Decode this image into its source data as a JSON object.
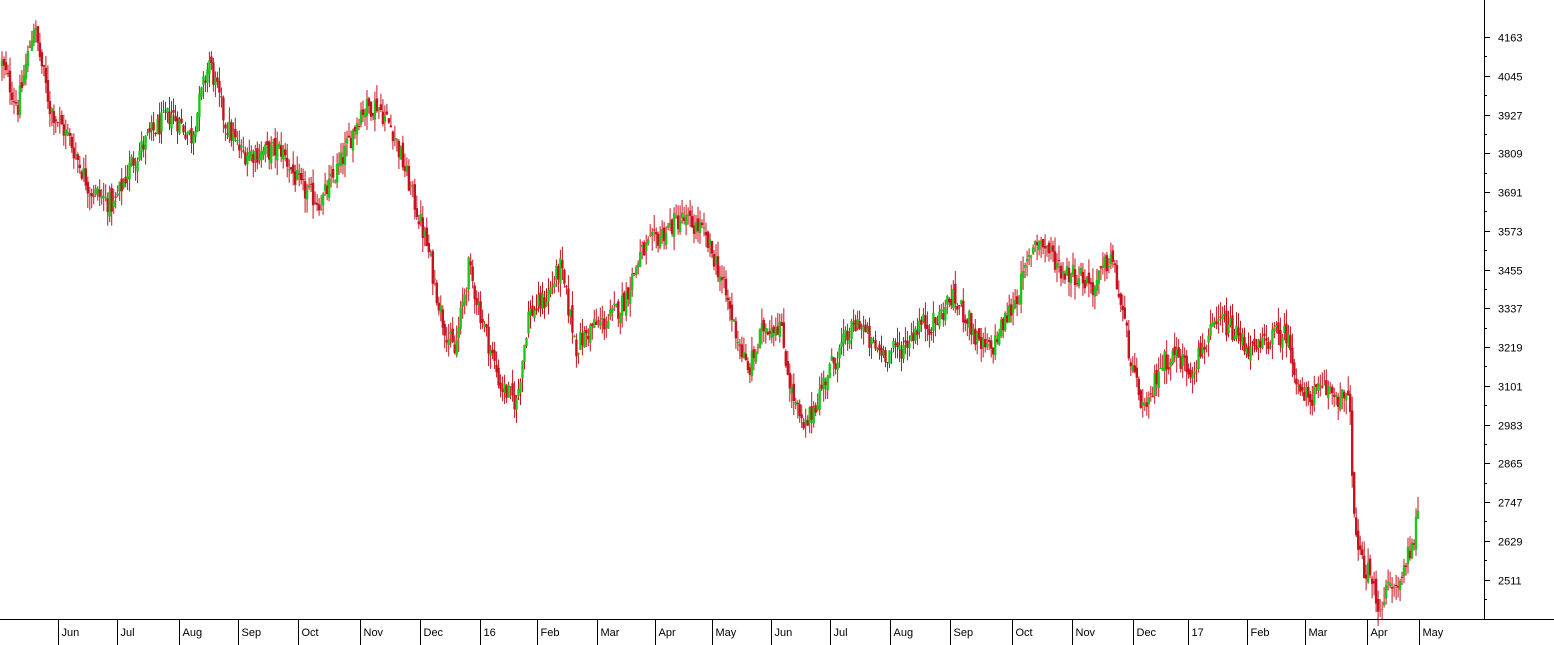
{
  "colors": {
    "up": "#19c819",
    "down": "#c8121e",
    "axis": "#000000",
    "background": "#ffffff"
  },
  "chart_data": {
    "type": "candlestick",
    "ylim": [
      2400,
      4280
    ],
    "y_ticks": [
      2511,
      2629,
      2747,
      2865,
      2983,
      3101,
      3219,
      3337,
      3455,
      3573,
      3691,
      3809,
      3927,
      4045,
      4163
    ],
    "x_labels": [
      "Jun",
      "Jul",
      "Aug",
      "Sep",
      "Oct",
      "Nov",
      "Dec",
      "16",
      "Feb",
      "Mar",
      "Apr",
      "May",
      "Jun",
      "Jul",
      "Aug",
      "Sep",
      "Oct",
      "Nov",
      "Dec",
      "17",
      "Feb",
      "Mar",
      "Apr",
      "May"
    ],
    "anchors": [
      [
        0,
        4080
      ],
      [
        8,
        3950
      ],
      [
        16,
        4200
      ],
      [
        24,
        3950
      ],
      [
        34,
        3850
      ],
      [
        44,
        3700
      ],
      [
        56,
        3650
      ],
      [
        65,
        3780
      ],
      [
        75,
        3870
      ],
      [
        85,
        3930
      ],
      [
        95,
        3860
      ],
      [
        104,
        4090
      ],
      [
        112,
        3900
      ],
      [
        120,
        3810
      ],
      [
        130,
        3810
      ],
      [
        140,
        3820
      ],
      [
        150,
        3700
      ],
      [
        160,
        3660
      ],
      [
        170,
        3780
      ],
      [
        180,
        3940
      ],
      [
        188,
        3960
      ],
      [
        196,
        3880
      ],
      [
        205,
        3700
      ],
      [
        213,
        3530
      ],
      [
        221,
        3300
      ],
      [
        227,
        3200
      ],
      [
        234,
        3460
      ],
      [
        241,
        3300
      ],
      [
        250,
        3100
      ],
      [
        258,
        3050
      ],
      [
        264,
        3320
      ],
      [
        272,
        3360
      ],
      [
        280,
        3460
      ],
      [
        288,
        3220
      ],
      [
        296,
        3280
      ],
      [
        304,
        3300
      ],
      [
        312,
        3360
      ],
      [
        320,
        3500
      ],
      [
        330,
        3560
      ],
      [
        340,
        3610
      ],
      [
        350,
        3580
      ],
      [
        358,
        3480
      ],
      [
        366,
        3310
      ],
      [
        374,
        3140
      ],
      [
        382,
        3280
      ],
      [
        390,
        3290
      ],
      [
        396,
        3080
      ],
      [
        402,
        2960
      ],
      [
        408,
        3050
      ],
      [
        414,
        3140
      ],
      [
        422,
        3230
      ],
      [
        430,
        3300
      ],
      [
        436,
        3220
      ],
      [
        444,
        3200
      ],
      [
        452,
        3220
      ],
      [
        460,
        3290
      ],
      [
        468,
        3290
      ],
      [
        476,
        3370
      ],
      [
        484,
        3310
      ],
      [
        490,
        3220
      ],
      [
        496,
        3210
      ],
      [
        503,
        3300
      ],
      [
        510,
        3390
      ],
      [
        518,
        3550
      ],
      [
        524,
        3520
      ],
      [
        532,
        3450
      ],
      [
        540,
        3440
      ],
      [
        548,
        3400
      ],
      [
        556,
        3500
      ],
      [
        562,
        3320
      ],
      [
        568,
        3110
      ],
      [
        574,
        3010
      ],
      [
        580,
        3160
      ],
      [
        588,
        3200
      ],
      [
        596,
        3150
      ],
      [
        604,
        3240
      ],
      [
        612,
        3300
      ],
      [
        620,
        3250
      ],
      [
        628,
        3200
      ],
      [
        636,
        3250
      ],
      [
        644,
        3260
      ],
      [
        652,
        3060
      ],
      [
        660,
        3080
      ],
      [
        666,
        3090
      ],
      [
        672,
        3060
      ],
      [
        676,
        3040
      ],
      [
        678,
        2680
      ],
      [
        681,
        2570
      ],
      [
        686,
        2520
      ],
      [
        690,
        2430
      ],
      [
        696,
        2490
      ],
      [
        700,
        2480
      ],
      [
        704,
        2570
      ],
      [
        710,
        2690
      ]
    ]
  }
}
